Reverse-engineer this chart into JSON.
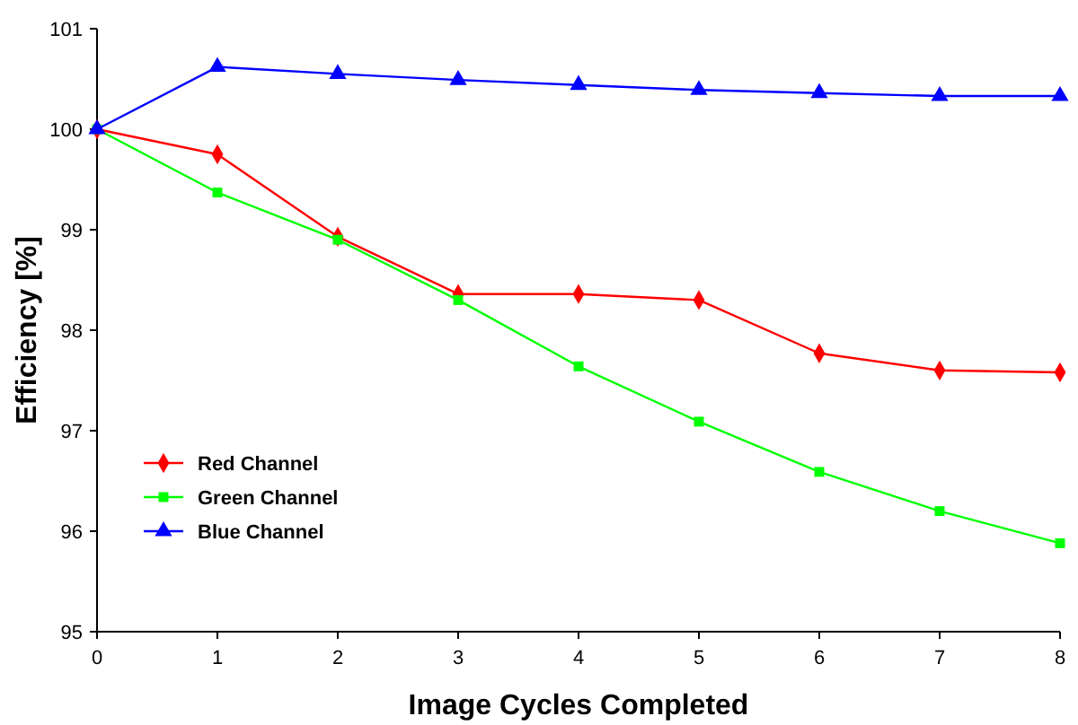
{
  "chart_data": {
    "type": "line",
    "xlabel": "Image Cycles Completed",
    "ylabel": "Efficiency [%]",
    "x": [
      0,
      1,
      2,
      3,
      4,
      5,
      6,
      7,
      8
    ],
    "xlim": [
      0,
      8
    ],
    "xticks": [
      0,
      1,
      2,
      3,
      4,
      5,
      6,
      7,
      8
    ],
    "ylim": [
      95,
      101
    ],
    "yticks": [
      95,
      96,
      97,
      98,
      99,
      100,
      101
    ],
    "grid": false,
    "legend": "bottom left",
    "series": [
      {
        "name": "Red Channel",
        "color": "#ff0000",
        "marker": "diamond",
        "values": [
          100,
          99.75,
          98.93,
          98.36,
          98.36,
          98.3,
          97.77,
          97.6,
          97.58
        ]
      },
      {
        "name": "Green Channel",
        "color": "#00ff00",
        "marker": "square",
        "values": [
          100,
          99.37,
          98.9,
          98.3,
          97.64,
          97.09,
          96.59,
          96.2,
          95.88
        ]
      },
      {
        "name": "Blue Channel",
        "color": "#0000ff",
        "marker": "triangle",
        "values": [
          100,
          100.62,
          100.55,
          100.49,
          100.44,
          100.39,
          100.36,
          100.33,
          100.33
        ]
      }
    ]
  }
}
